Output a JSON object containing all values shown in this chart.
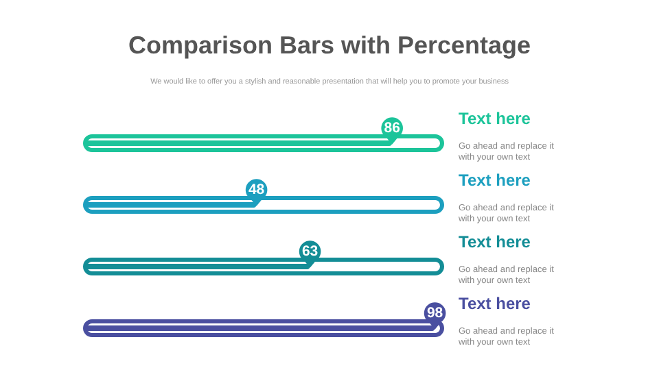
{
  "chart_data": {
    "type": "bar",
    "orientation": "horizontal",
    "title": "Comparison Bars with Percentage",
    "subtitle": "We would like to offer you a stylish and reasonable presentation that will help you to promote your business",
    "categories": [
      "Text here",
      "Text here",
      "Text here",
      "Text here"
    ],
    "values": [
      86,
      48,
      63,
      98
    ],
    "colors": [
      "#1cc49a",
      "#1c9fbf",
      "#138d96",
      "#4a4fa0"
    ],
    "tick_labels": false,
    "data_labels": true,
    "annotations": [
      "Go ahead and replace it with your own text",
      "Go ahead and replace it with your own text",
      "Go ahead and replace it with your own text",
      "Go ahead and replace it with your own text"
    ]
  }
}
